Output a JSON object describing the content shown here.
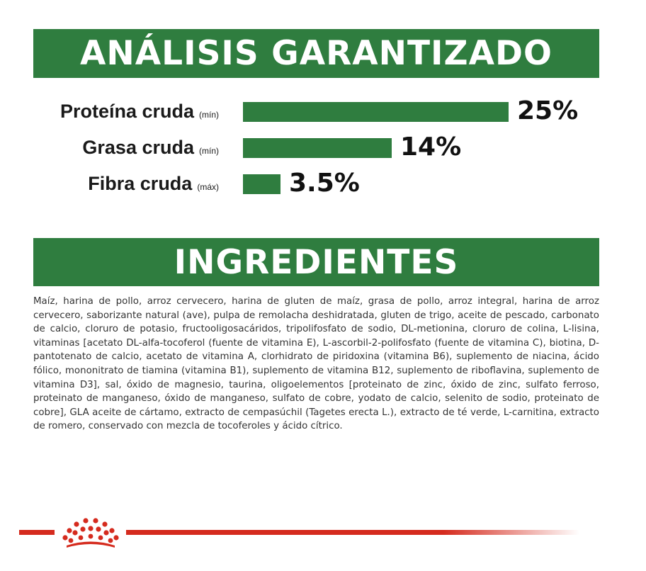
{
  "analysis": {
    "title": "ANÁLISIS GARANTIZADO",
    "rows": [
      {
        "name": "Proteína cruda",
        "qualifier": "(mín)",
        "value_label": "25%",
        "value": 25
      },
      {
        "name": "Grasa cruda",
        "qualifier": "(mín)",
        "value_label": "14%",
        "value": 14
      },
      {
        "name": "Fibra cruda",
        "qualifier": "(máx)",
        "value_label": "3.5%",
        "value": 3.5
      }
    ]
  },
  "ingredients": {
    "title": "INGREDIENTES",
    "text": "Maíz, harina de pollo, arroz cervecero, harina de gluten de maíz, grasa de pollo, arroz integral, harina de arroz cervecero, saborizante natural (ave), pulpa de remolacha deshidratada, gluten de trigo, aceite de pescado, carbonato de calcio, cloruro de potasio, fructooligosacáridos, tripolifosfato de sodio, DL-metionina, cloruro de colina, L-lisina, vitaminas [acetato DL-alfa-tocoferol (fuente de vitamina E), L-ascorbil-2-polifosfato (fuente de vitamina C), biotina, D-pantotenato de calcio, acetato de vitamina A, clorhidrato de piridoxina (vitamina B6), suplemento de niacina, ácido fólico, mononitrato de tiamina (vitamina B1), suplemento de vitamina B12, suplemento de riboflavina, suplemento de vitamina D3], sal, óxido de magnesio, taurina, oligoelementos [proteinato de zinc, óxido de zinc, sulfato ferroso, proteinato de manganeso, óxido de manganeso, sulfato de cobre, yodato de calcio, selenito de sodio, proteinato de cobre], GLA aceite de cártamo, extracto de cempasúchil (Tagetes erecta L.), extracto de té verde, L-carnitina, extracto de romero, conservado con mezcla de tocoferoles y ácido cítrico."
  },
  "footer": {
    "logo_icon": "royal-canin-crown-icon"
  },
  "colors": {
    "green": "#2f7d3f",
    "brand_red": "#d52b1e",
    "text": "#333333"
  }
}
